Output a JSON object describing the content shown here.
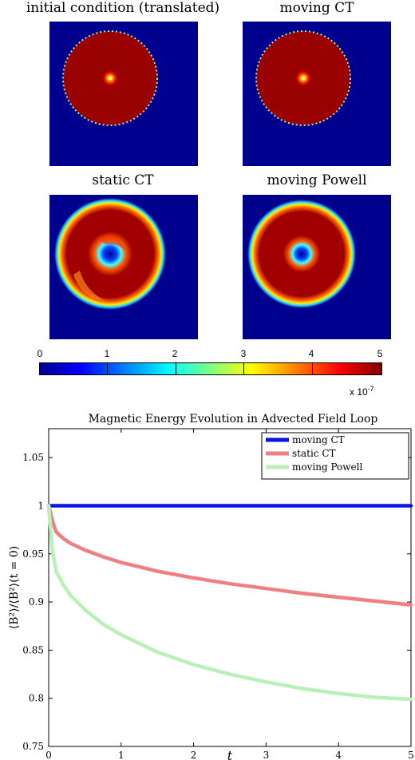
{
  "panels": [
    {
      "title": "initial condition (translated)",
      "field": "initial"
    },
    {
      "title": "moving CT",
      "field": "initial"
    },
    {
      "title": "static CT",
      "field": "static"
    },
    {
      "title": "moving Powell",
      "field": "powell"
    }
  ],
  "colorbar": {
    "ticks": [
      "0",
      "1",
      "2",
      "3",
      "4",
      "5"
    ],
    "range": [
      0,
      5
    ],
    "scale_base": "x 10",
    "scale_exp": "-7",
    "colors": [
      "#00008f",
      "#0000ff",
      "#00ffff",
      "#ffff00",
      "#ff0000",
      "#800000"
    ]
  },
  "chart_data": {
    "type": "line",
    "title": "Magnetic Energy Evolution in Advected Field Loop",
    "xlabel": "t",
    "ylabel": "⟨B²⟩/⟨B²⟩(t = 0)",
    "xlim": [
      0,
      5
    ],
    "ylim": [
      0.75,
      1.08
    ],
    "xticks": [
      "0",
      "1",
      "2",
      "3",
      "4",
      "5"
    ],
    "yticks": [
      "0.75",
      "0.8",
      "0.85",
      "0.9",
      "0.95",
      "1",
      "1.05"
    ],
    "grid": false,
    "legend_position": "top-right",
    "series": [
      {
        "name": "moving CT",
        "color": "#0a14e6",
        "x": [
          0,
          1,
          2,
          3,
          4,
          5
        ],
        "y": [
          1,
          1,
          1,
          1,
          1,
          1
        ]
      },
      {
        "name": "static CT",
        "color": "#f08080",
        "x": [
          0,
          0.05,
          0.1,
          0.2,
          0.3,
          0.5,
          0.75,
          1,
          1.5,
          2,
          2.5,
          3,
          3.5,
          4,
          4.5,
          5
        ],
        "y": [
          1,
          0.985,
          0.973,
          0.966,
          0.961,
          0.954,
          0.947,
          0.941,
          0.932,
          0.925,
          0.919,
          0.914,
          0.909,
          0.905,
          0.901,
          0.897
        ]
      },
      {
        "name": "moving Powell",
        "color": "#b8f0b8",
        "x": [
          0,
          0.05,
          0.1,
          0.2,
          0.3,
          0.5,
          0.75,
          1,
          1.5,
          2,
          2.5,
          3,
          3.5,
          4,
          4.5,
          5
        ],
        "y": [
          1,
          0.955,
          0.932,
          0.918,
          0.907,
          0.892,
          0.877,
          0.866,
          0.848,
          0.835,
          0.825,
          0.817,
          0.81,
          0.805,
          0.801,
          0.799
        ]
      }
    ]
  }
}
